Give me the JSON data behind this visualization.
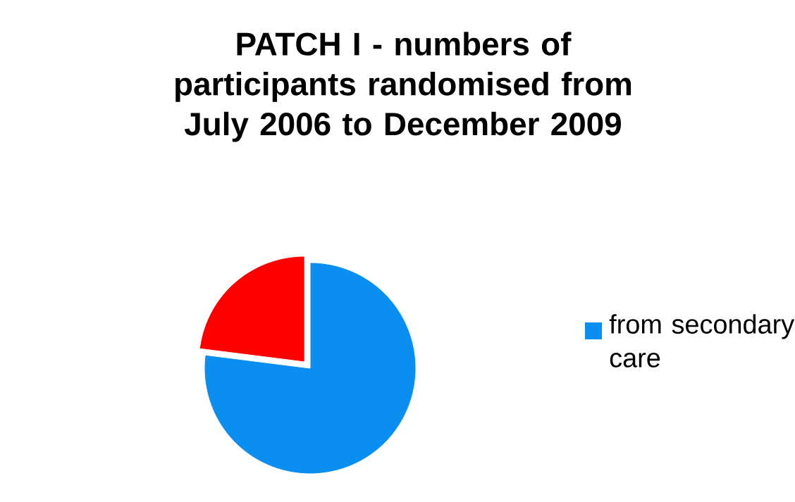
{
  "chart_data": {
    "type": "pie",
    "title": "PATCH I - numbers of participants randomised from July 2006 to December 2009",
    "categories": [
      "from secondary care",
      null
    ],
    "values": [
      77,
      23
    ],
    "colors": [
      "#0a8ff0",
      "#ff0000"
    ],
    "legend": "right"
  }
}
